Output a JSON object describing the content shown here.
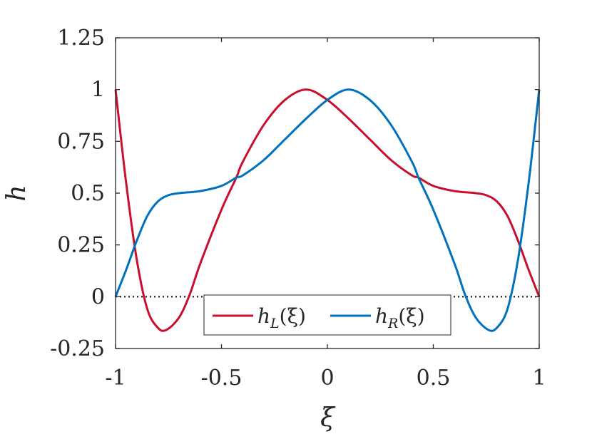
{
  "chart_data": {
    "type": "line",
    "xlabel": "ξ",
    "ylabel": "h",
    "xlim": [
      -1,
      1
    ],
    "ylim": [
      -0.25,
      1.25
    ],
    "xticks": [
      -1,
      -0.5,
      0,
      0.5,
      1
    ],
    "xtick_labels": [
      "-1",
      "-0.5",
      "0",
      "0.5",
      "1"
    ],
    "yticks": [
      -0.25,
      0,
      0.25,
      0.5,
      0.75,
      1,
      1.25
    ],
    "ytick_labels": [
      "-0.25",
      "0",
      "0.25",
      "0.5",
      "0.75",
      "1",
      "1.25"
    ],
    "grid": false,
    "legend_position": "bottom-center",
    "reference_line": {
      "y": 0,
      "style": "dotted",
      "color": "#000000"
    },
    "series": [
      {
        "name": "h_L(ξ)",
        "legend_main": "h",
        "legend_sub": "L",
        "legend_arg": "(ξ)",
        "color": "#C8102E",
        "x": [
          -1,
          -0.95,
          -0.9,
          -0.85,
          -0.8,
          -0.76,
          -0.7,
          -0.65,
          -0.6,
          -0.5,
          -0.43,
          -0.4,
          -0.3,
          -0.2,
          -0.1,
          0,
          0.1,
          0.2,
          0.3,
          0.4,
          0.43,
          0.5,
          0.6,
          0.7,
          0.75,
          0.8,
          0.85,
          0.9,
          0.95,
          1
        ],
        "y": [
          1.0,
          0.55,
          0.18,
          -0.06,
          -0.15,
          -0.16,
          -0.1,
          0.01,
          0.16,
          0.42,
          0.575,
          0.65,
          0.83,
          0.95,
          1.0,
          0.95,
          0.86,
          0.76,
          0.66,
          0.585,
          0.575,
          0.535,
          0.51,
          0.5,
          0.49,
          0.46,
          0.39,
          0.27,
          0.13,
          0.0
        ]
      },
      {
        "name": "h_R(ξ)",
        "legend_main": "h",
        "legend_sub": "R",
        "legend_arg": "(ξ)",
        "color": "#0072BD",
        "x": [
          -1,
          -0.95,
          -0.9,
          -0.85,
          -0.8,
          -0.75,
          -0.7,
          -0.6,
          -0.5,
          -0.43,
          -0.4,
          -0.3,
          -0.2,
          -0.1,
          0,
          0.1,
          0.2,
          0.3,
          0.4,
          0.43,
          0.5,
          0.6,
          0.65,
          0.7,
          0.76,
          0.8,
          0.85,
          0.9,
          0.95,
          1
        ],
        "y": [
          0.0,
          0.13,
          0.27,
          0.39,
          0.46,
          0.49,
          0.5,
          0.51,
          0.535,
          0.575,
          0.585,
          0.66,
          0.76,
          0.86,
          0.95,
          1.0,
          0.95,
          0.83,
          0.65,
          0.575,
          0.42,
          0.16,
          0.01,
          -0.1,
          -0.16,
          -0.15,
          -0.06,
          0.18,
          0.55,
          1.0
        ]
      }
    ]
  }
}
